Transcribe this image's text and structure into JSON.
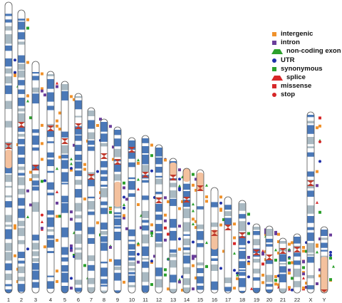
{
  "chromosomes": [
    "1",
    "2",
    "3",
    "4",
    "5",
    "6",
    "7",
    "8",
    "9",
    "10",
    "11",
    "12",
    "13",
    "14",
    "15",
    "16",
    "17",
    "18",
    "19",
    "20",
    "21",
    "22",
    "X",
    "Y"
  ],
  "legend": [
    {
      "label": "intergenic",
      "shape": "square",
      "color": "#f0922c",
      "icon": "square-icon"
    },
    {
      "label": "intron",
      "shape": "square",
      "color": "#6a3d9a",
      "icon": "square-icon"
    },
    {
      "label": "non-coding exon",
      "shape": "triangle",
      "color": "#2ca02c",
      "icon": "triangle-icon"
    },
    {
      "label": "UTR",
      "shape": "circle",
      "color": "#1f2fa8",
      "icon": "circle-icon"
    },
    {
      "label": "synonymous",
      "shape": "square",
      "color": "#2ca02c",
      "icon": "square-icon"
    },
    {
      "label": "splice",
      "shape": "triangle",
      "color": "#d62728",
      "icon": "triangle-icon"
    },
    {
      "label": "missense",
      "shape": "square",
      "color": "#d62728",
      "icon": "square-icon"
    },
    {
      "label": "stop",
      "shape": "circle",
      "color": "#d62728",
      "icon": "circle-icon"
    }
  ],
  "colors": {
    "band_dark": "#4a78b8",
    "band_mid": "#a9b9c2",
    "band_light": "#ffffff",
    "heterochromatin": "#f4c19e",
    "centromere": "#c0392b",
    "outline": "#555555"
  }
}
